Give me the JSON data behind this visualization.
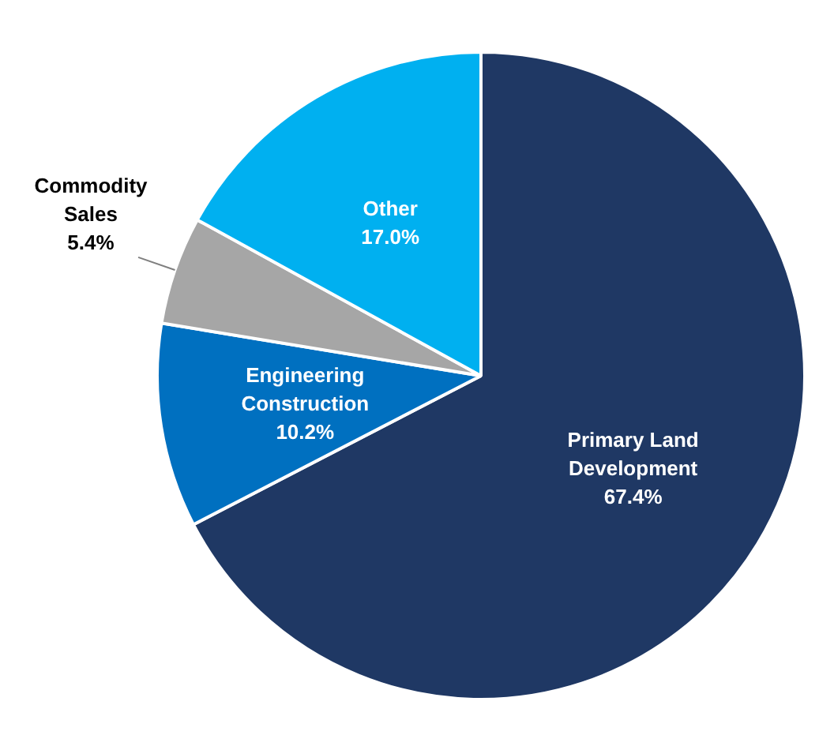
{
  "chart_data": {
    "type": "pie",
    "categories": [
      "Primary Land Development",
      "Engineering Construction",
      "Commodity Sales",
      "Other"
    ],
    "values": [
      67.4,
      10.2,
      5.4,
      17.0
    ],
    "value_labels": [
      "67.4%",
      "10.2%",
      "5.4%",
      "17.0%"
    ],
    "colors": [
      "#1f3864",
      "#0070c0",
      "#a6a6a6",
      "#00b0f0"
    ]
  }
}
